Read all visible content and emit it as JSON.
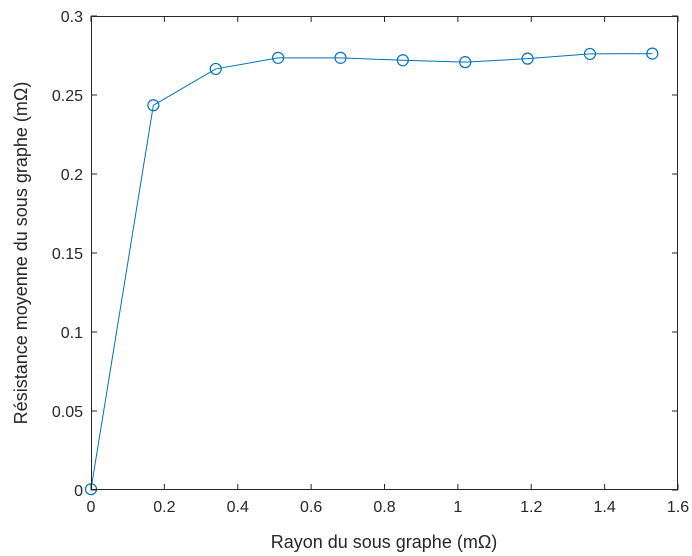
{
  "chart_data": {
    "type": "line",
    "title": "",
    "xlabel": "Rayon du sous graphe (mΩ)",
    "ylabel": "Résistance moyenne du sous graphe (mΩ)",
    "xlim": [
      0,
      1.6
    ],
    "ylim": [
      0,
      0.3
    ],
    "xticks": [
      "0",
      "0.2",
      "0.4",
      "0.6",
      "0.8",
      "1",
      "1.2",
      "1.4",
      "1.6"
    ],
    "yticks": [
      "0",
      "0.05",
      "0.1",
      "0.15",
      "0.2",
      "0.25",
      "0.3"
    ],
    "grid": false,
    "legend": false,
    "marker": "circle-open",
    "color": "#0072BD",
    "series": [
      {
        "x": [
          0,
          0.17,
          0.34,
          0.51,
          0.68,
          0.85,
          1.02,
          1.19,
          1.36,
          1.53
        ],
        "y": [
          0.0005,
          0.2435,
          0.2665,
          0.2735,
          0.2735,
          0.272,
          0.2708,
          0.273,
          0.276,
          0.2762
        ]
      }
    ]
  }
}
